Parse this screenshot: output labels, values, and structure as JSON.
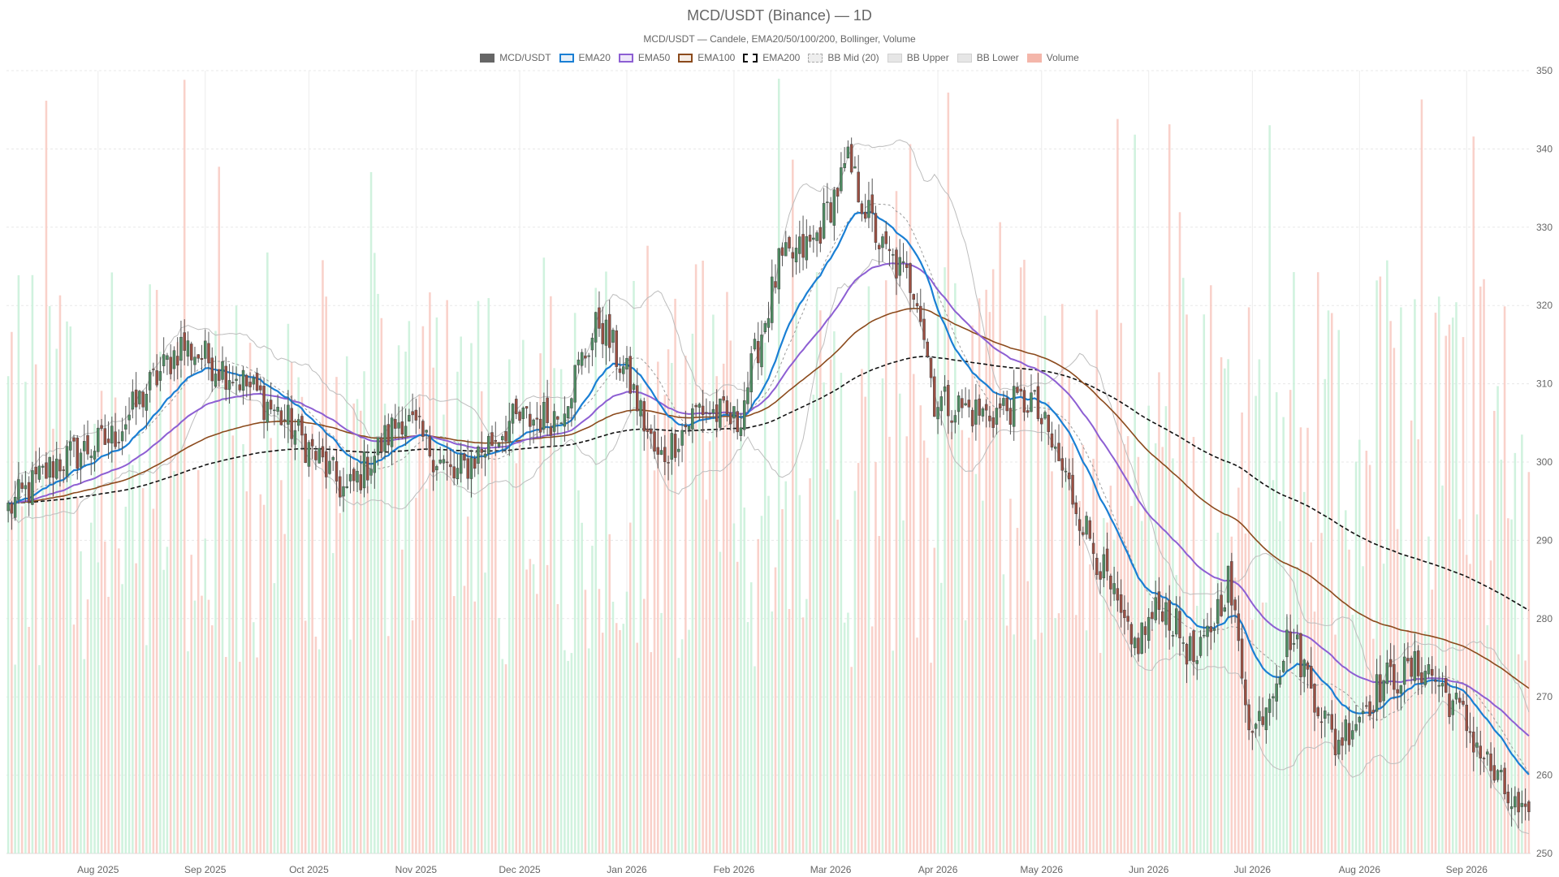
{
  "title": "MCD/USDT (Binance) — 1D",
  "subtitle": "MCD/USDT — Candele, EMA20/50/100/200, Bollinger, Volume",
  "legend": [
    {
      "label": "MCD/USDT",
      "color": "#666666",
      "style": "solid-fill"
    },
    {
      "label": "EMA20",
      "color": "#1a7fd4",
      "style": "line"
    },
    {
      "label": "EMA50",
      "color": "#8d5fd3",
      "style": "line"
    },
    {
      "label": "EMA100",
      "color": "#8b4a1c",
      "style": "line"
    },
    {
      "label": "EMA200",
      "color": "#111111",
      "style": "dashed"
    },
    {
      "label": "BB Mid (20)",
      "color": "#aaaaaa",
      "style": "dotted"
    },
    {
      "label": "BB Upper",
      "color": "#bbbbbb",
      "style": "band"
    },
    {
      "label": "BB Lower",
      "color": "#bbbbbb",
      "style": "band"
    },
    {
      "label": "Volume",
      "color": "#f4b6aa",
      "style": "fill"
    }
  ],
  "chart_data": {
    "type": "candlestick",
    "y_axis": {
      "ticks": [
        250,
        260,
        270,
        280,
        290,
        300,
        310,
        320,
        330,
        340,
        350
      ],
      "range": [
        250,
        350
      ],
      "position": "right"
    },
    "x_axis": {
      "ticks": [
        "Aug 2025",
        "Sep 2025",
        "Oct 2025",
        "Nov 2025",
        "Dec 2025",
        "Jan 2026",
        "Feb 2026",
        "Mar 2026",
        "Apr 2026",
        "May 2026",
        "Jun 2026",
        "Jul 2026",
        "Aug 2026",
        "Sep 2026"
      ]
    },
    "grid": true,
    "legend_position": "top",
    "colors": {
      "up": "#4e8c62",
      "down": "#9b4f42",
      "vol_up": "#c8f0d8",
      "vol_down": "#f8c9c1"
    },
    "close_keypoints": [
      [
        "2025-07-06",
        294
      ],
      [
        "2025-07-20",
        300
      ],
      [
        "2025-08-05",
        303
      ],
      [
        "2025-08-25",
        315
      ],
      [
        "2025-09-10",
        311
      ],
      [
        "2025-09-25",
        305
      ],
      [
        "2025-10-12",
        296
      ],
      [
        "2025-10-28",
        306
      ],
      [
        "2025-11-12",
        298
      ],
      [
        "2025-11-28",
        305
      ],
      [
        "2025-12-12",
        306
      ],
      [
        "2025-12-24",
        318
      ],
      [
        "2026-01-02",
        310
      ],
      [
        "2026-01-10",
        300
      ],
      [
        "2026-01-22",
        307
      ],
      [
        "2026-02-02",
        305
      ],
      [
        "2026-02-14",
        325
      ],
      [
        "2026-02-24",
        328
      ],
      [
        "2026-03-06",
        338
      ],
      [
        "2026-03-16",
        327
      ],
      [
        "2026-03-26",
        322
      ],
      [
        "2026-03-31",
        308
      ],
      [
        "2026-04-15",
        306
      ],
      [
        "2026-04-28",
        308
      ],
      [
        "2026-05-06",
        300
      ],
      [
        "2026-05-18",
        287
      ],
      [
        "2026-05-27",
        276
      ],
      [
        "2026-06-05",
        282
      ],
      [
        "2026-06-15",
        274
      ],
      [
        "2026-06-24",
        285
      ],
      [
        "2026-07-01",
        265
      ],
      [
        "2026-07-12",
        278
      ],
      [
        "2026-07-25",
        264
      ],
      [
        "2026-08-08",
        272
      ],
      [
        "2026-08-20",
        274
      ],
      [
        "2026-08-30",
        268
      ],
      [
        "2026-09-10",
        259
      ],
      [
        "2026-09-19",
        253
      ]
    ]
  }
}
